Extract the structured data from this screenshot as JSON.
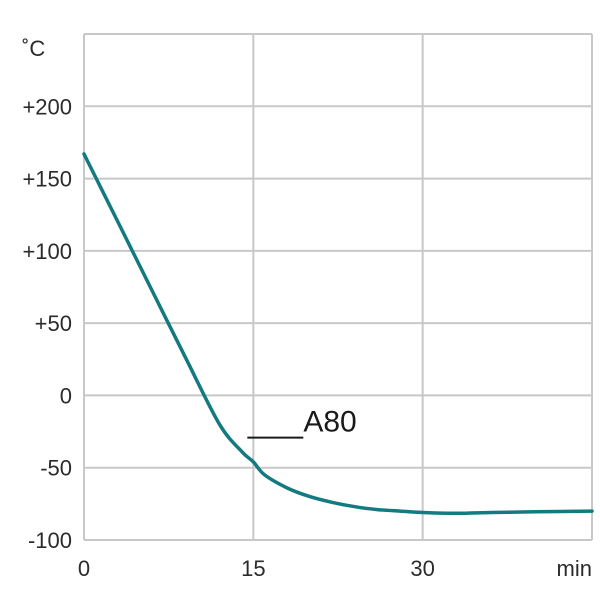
{
  "chart_data": {
    "type": "line",
    "y_unit": "˚C",
    "x_unit": "min",
    "xlim": [
      0,
      45
    ],
    "ylim": [
      -100,
      250
    ],
    "x_ticks": [
      {
        "value": 0,
        "label": "0"
      },
      {
        "value": 15,
        "label": "15"
      },
      {
        "value": 30,
        "label": "30"
      }
    ],
    "y_ticks": [
      {
        "value": 200,
        "label": "+200"
      },
      {
        "value": 150,
        "label": "+150"
      },
      {
        "value": 100,
        "label": "+100"
      },
      {
        "value": 50,
        "label": "+50"
      },
      {
        "value": 0,
        "label": "0"
      },
      {
        "value": -50,
        "label": "-50"
      },
      {
        "value": -100,
        "label": "-100"
      }
    ],
    "grid": true,
    "series": [
      {
        "name": "A80",
        "color": "#137a80",
        "x": [
          0,
          3,
          6,
          9,
          12,
          14,
          15,
          16,
          18,
          20,
          22,
          24,
          26,
          28,
          30,
          33,
          36,
          40,
          45
        ],
        "y": [
          167,
          120,
          73,
          26,
          -20,
          -39,
          -46,
          -55,
          -64,
          -70,
          -74,
          -77,
          -79,
          -80,
          -81,
          -81.5,
          -81,
          -80.5,
          -80
        ]
      }
    ]
  }
}
